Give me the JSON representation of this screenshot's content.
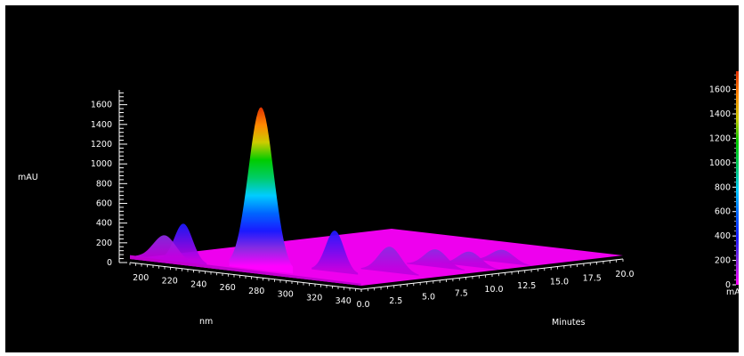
{
  "chart_data": {
    "type": "surface-3d",
    "z_axis": {
      "label": "mAU",
      "ticks": [
        0,
        200,
        400,
        600,
        800,
        1000,
        1200,
        1400,
        1600
      ],
      "range": [
        0,
        1750
      ]
    },
    "wavelength_axis": {
      "label": "nm",
      "ticks": [
        200,
        220,
        240,
        260,
        280,
        300,
        320,
        340
      ],
      "range": [
        190,
        350
      ]
    },
    "time_axis": {
      "label": "Minutes",
      "ticks": [
        "0.0",
        "2.5",
        "5.0",
        "7.5",
        "10.0",
        "12.5",
        "15.0",
        "17.5",
        "20.0"
      ],
      "range": [
        0,
        20
      ]
    },
    "colorbar": {
      "label": "mAU",
      "ticks": [
        0,
        200,
        400,
        600,
        800,
        1000,
        1200,
        1400,
        1600
      ],
      "colors": [
        "#ff00ff",
        "#8a2be2",
        "#1a1aff",
        "#0066ff",
        "#00ccff",
        "#00cc66",
        "#00cc00",
        "#cccc00",
        "#ff8800",
        "#e03000"
      ]
    },
    "peaks": [
      {
        "time_min": 1.4,
        "wavelength_nm": 268,
        "height_mAU": 1650
      },
      {
        "time_min": 1.0,
        "wavelength_nm": 218,
        "height_mAU": 390
      },
      {
        "time_min": 1.0,
        "wavelength_nm": 205,
        "height_mAU": 250
      },
      {
        "time_min": 3.5,
        "wavelength_nm": 300,
        "height_mAU": 420
      },
      {
        "time_min": 5.5,
        "wavelength_nm": 320,
        "height_mAU": 260
      },
      {
        "time_min": 9.0,
        "wavelength_nm": 320,
        "height_mAU": 180
      },
      {
        "time_min": 10.5,
        "wavelength_nm": 330,
        "height_mAU": 150
      },
      {
        "time_min": 13.0,
        "wavelength_nm": 330,
        "height_mAU": 130
      }
    ]
  }
}
